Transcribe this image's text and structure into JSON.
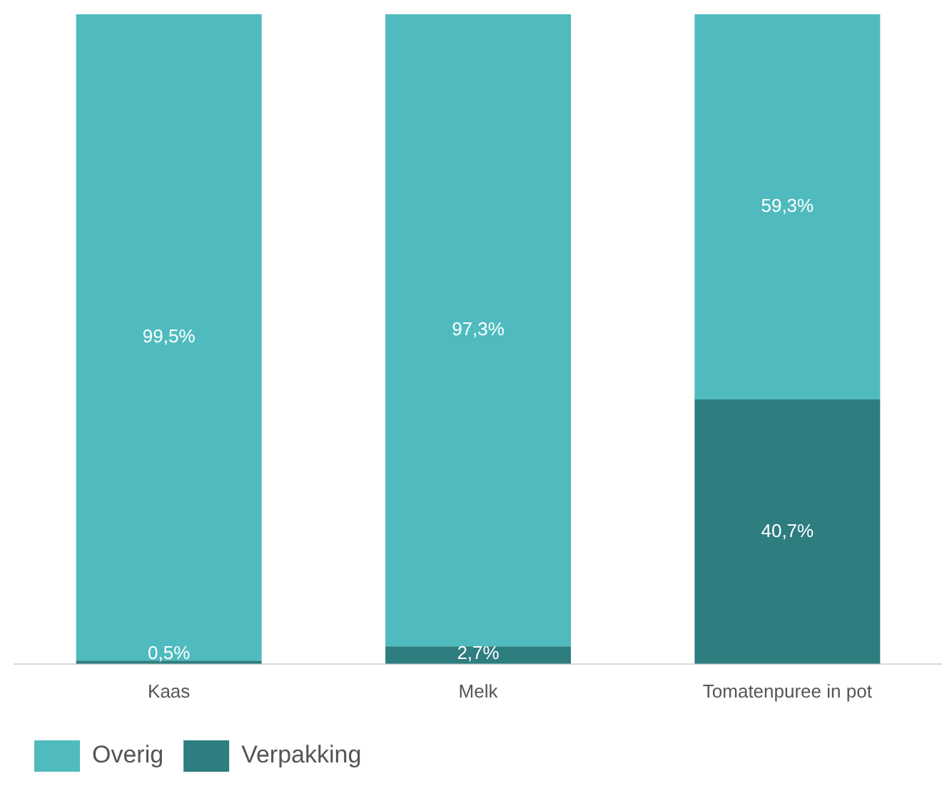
{
  "chart_data": {
    "type": "bar",
    "stacked": true,
    "categories": [
      "Kaas",
      "Melk",
      "Tomatenpuree in pot"
    ],
    "series": [
      {
        "name": "Verpakking",
        "color": "#2e7d7f",
        "values": [
          0.5,
          2.7,
          40.7
        ],
        "value_labels": [
          "0,5%",
          "2,7%",
          "40,7%"
        ]
      },
      {
        "name": "Overig",
        "color": "#4fbbbf",
        "values": [
          99.5,
          97.3,
          59.3
        ],
        "value_labels": [
          "99,5%",
          "97,3%",
          "59,3%"
        ]
      }
    ],
    "ylim": [
      0,
      100
    ],
    "tick_labels": "x",
    "grid": false,
    "legend": "bottom left"
  }
}
